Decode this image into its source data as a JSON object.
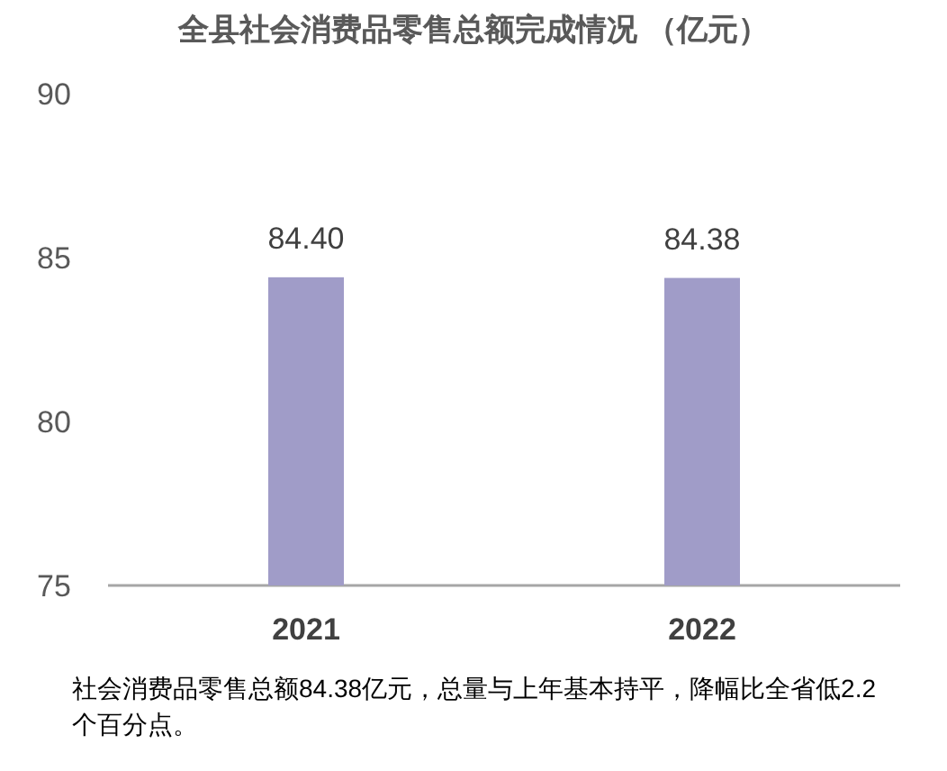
{
  "chart_data": {
    "type": "bar",
    "title": "全县社会消费品零售总额完成情况 （亿元）",
    "categories": [
      "2021",
      "2022"
    ],
    "values": [
      84.4,
      84.38
    ],
    "value_labels": [
      "84.40",
      "84.38"
    ],
    "color": "#a09cc8",
    "ylim": [
      75,
      90
    ],
    "yticks": [
      75,
      80,
      85,
      90
    ],
    "grid": false,
    "annotations": [
      "社会消费品零售总额84.38亿元，总量与上年基本持平，降幅比全省低2.2个百分点。"
    ]
  }
}
